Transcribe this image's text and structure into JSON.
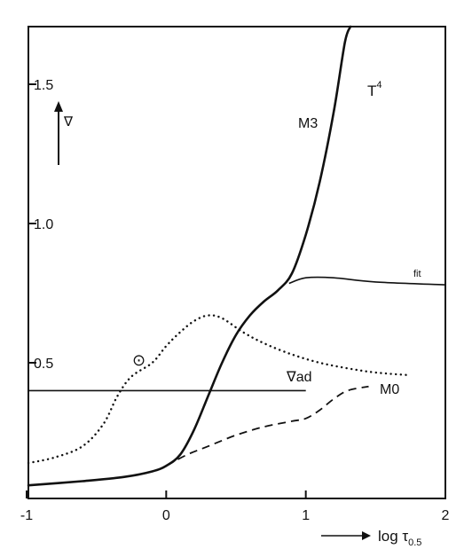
{
  "chart_data": {
    "type": "line",
    "xlabel": "log τ0.5",
    "ylabel": "∇",
    "xlim": [
      -1,
      2
    ],
    "ylim": [
      0.05,
      1.8
    ],
    "grid": false,
    "x_ticks": [
      "-1",
      "0",
      "1",
      "2"
    ],
    "y_ticks": [
      "0.5",
      "1.0",
      "1.5"
    ],
    "series": [
      {
        "name": "M3",
        "style": "solid-thick",
        "points": [
          [
            -1.0,
            0.06
          ],
          [
            -0.6,
            0.075
          ],
          [
            -0.3,
            0.09
          ],
          [
            -0.1,
            0.11
          ],
          [
            0.0,
            0.13
          ],
          [
            0.1,
            0.17
          ],
          [
            0.2,
            0.26
          ],
          [
            0.3,
            0.38
          ],
          [
            0.4,
            0.5
          ],
          [
            0.5,
            0.6
          ],
          [
            0.6,
            0.67
          ],
          [
            0.7,
            0.72
          ],
          [
            0.8,
            0.76
          ],
          [
            0.9,
            0.82
          ],
          [
            1.0,
            0.96
          ],
          [
            1.1,
            1.15
          ],
          [
            1.2,
            1.4
          ],
          [
            1.28,
            1.65
          ],
          [
            1.32,
            1.8
          ]
        ]
      },
      {
        "name": "fit",
        "style": "solid-thin",
        "points": [
          [
            0.88,
            0.785
          ],
          [
            1.0,
            0.805
          ],
          [
            1.2,
            0.805
          ],
          [
            1.5,
            0.79
          ],
          [
            2.0,
            0.78
          ]
        ]
      },
      {
        "name": "M0",
        "style": "dashed",
        "points": [
          [
            0.0,
            0.13
          ],
          [
            0.15,
            0.17
          ],
          [
            0.3,
            0.2
          ],
          [
            0.5,
            0.24
          ],
          [
            0.7,
            0.27
          ],
          [
            0.9,
            0.29
          ],
          [
            1.0,
            0.3
          ],
          [
            1.1,
            0.33
          ],
          [
            1.2,
            0.37
          ],
          [
            1.3,
            0.4
          ],
          [
            1.45,
            0.415
          ]
        ]
      },
      {
        "name": "⊙",
        "style": "dotted",
        "points": [
          [
            -1.0,
            0.14
          ],
          [
            -0.8,
            0.16
          ],
          [
            -0.6,
            0.2
          ],
          [
            -0.45,
            0.28
          ],
          [
            -0.35,
            0.38
          ],
          [
            -0.25,
            0.45
          ],
          [
            -0.1,
            0.5
          ],
          [
            0.0,
            0.56
          ],
          [
            0.1,
            0.61
          ],
          [
            0.2,
            0.65
          ],
          [
            0.3,
            0.67
          ],
          [
            0.4,
            0.66
          ],
          [
            0.55,
            0.61
          ],
          [
            0.7,
            0.57
          ],
          [
            0.9,
            0.53
          ],
          [
            1.1,
            0.5
          ],
          [
            1.3,
            0.48
          ],
          [
            1.5,
            0.465
          ],
          [
            1.75,
            0.455
          ]
        ]
      },
      {
        "name": "∇ad",
        "style": "solid-thin",
        "points": [
          [
            -1.0,
            0.4
          ],
          [
            1.0,
            0.4
          ]
        ]
      }
    ],
    "annotations": [
      "T⁴",
      "M3",
      "fit",
      "∇ad",
      "M0",
      "⊙"
    ]
  }
}
